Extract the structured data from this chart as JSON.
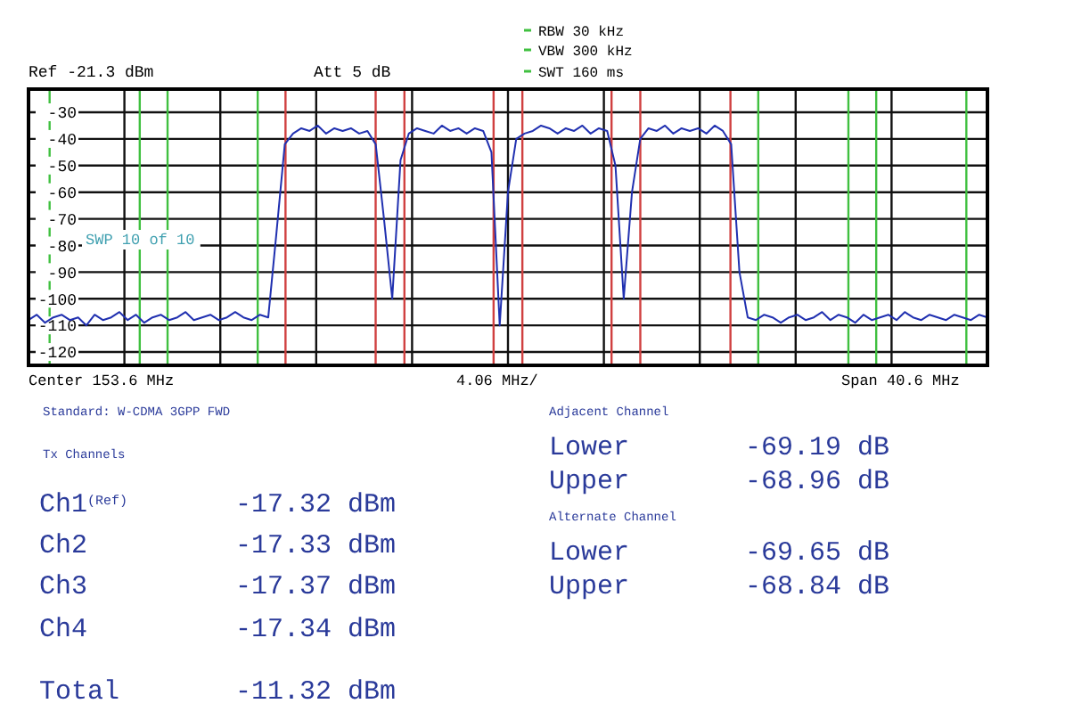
{
  "chart_data": {
    "type": "line",
    "categories": [
      null,
      null,
      null,
      null,
      null,
      null,
      null,
      null,
      null,
      null,
      null,
      null,
      null,
      null,
      null,
      null,
      null,
      null,
      null,
      null,
      null,
      null,
      null,
      null,
      null,
      null,
      null,
      null,
      null,
      null,
      null,
      null,
      null,
      null,
      null,
      null,
      null,
      null,
      null,
      null,
      null,
      null,
      null,
      null,
      null,
      null,
      null,
      null,
      null,
      null,
      null,
      null,
      null,
      null,
      null,
      null,
      null,
      null,
      null,
      null,
      null,
      null,
      null,
      null,
      null,
      null,
      null,
      null,
      null,
      null,
      null,
      null,
      null,
      null,
      null,
      null,
      null,
      null,
      null,
      null,
      null,
      null,
      null,
      null,
      null,
      null,
      null,
      null,
      null,
      null,
      null,
      null,
      null,
      null,
      null,
      null,
      null,
      null,
      null,
      null,
      null,
      null,
      null,
      null,
      null,
      null,
      null,
      null,
      null,
      null,
      null,
      null,
      null,
      null,
      null,
      null,
      null
    ],
    "ylim": [
      -125,
      -21.3
    ],
    "yticks": [
      {
        "value": -30,
        "label": "-30"
      },
      {
        "value": -40,
        "label": "-40"
      },
      {
        "value": -50,
        "label": "-50"
      },
      {
        "value": -60,
        "label": "-60"
      },
      {
        "value": -70,
        "label": "-70"
      },
      {
        "value": -80,
        "label": "-80"
      },
      {
        "value": -90,
        "label": "-90"
      },
      {
        "value": -100,
        "label": "-100"
      },
      {
        "value": -110,
        "label": "-110"
      },
      {
        "value": -120,
        "label": "-120"
      }
    ],
    "tick_labels": "y",
    "grid": true,
    "marker": "none",
    "line_style": "solid",
    "series": [
      {
        "color": "#2030b0",
        "values": [
          -108,
          -106,
          -109,
          -107,
          -106,
          -108,
          -107,
          -110,
          -106,
          -108,
          -107,
          -105,
          -108,
          -106,
          -109,
          -107,
          -106,
          -108,
          -107,
          -105,
          -108,
          -107,
          -106,
          -108,
          -107,
          -105,
          -107,
          -108,
          -106,
          -107,
          -75,
          -42,
          -38,
          -36,
          -37,
          -35,
          -38,
          -36,
          -37,
          -36,
          -38,
          -37,
          -42,
          -70,
          -100,
          -48,
          -38,
          -36,
          -37,
          -38,
          -35,
          -37,
          -36,
          -38,
          -36,
          -37,
          -45,
          -110,
          -60,
          -40,
          -38,
          -37,
          -35,
          -36,
          -38,
          -36,
          -37,
          -35,
          -38,
          -36,
          -37,
          -50,
          -100,
          -60,
          -40,
          -36,
          -37,
          -35,
          -38,
          -36,
          -37,
          -36,
          -38,
          -35,
          -37,
          -42,
          -90,
          -107,
          -108,
          -106,
          -107,
          -109,
          -107,
          -106,
          -108,
          -107,
          -105,
          -108,
          -106,
          -107,
          -109,
          -106,
          -108,
          -107,
          -106,
          -108,
          -105,
          -107,
          -108,
          -106,
          -107,
          -108,
          -106,
          -107,
          -108,
          -106,
          -107
        ]
      }
    ],
    "annotations": [
      "Ref -21.3 dBm",
      "Att 5 dB",
      "RBW 30 kHz",
      "VBW 300 kHz",
      "SWT 160 ms",
      "SWP 10 of 10",
      "Center 153.6 MHz",
      "4.06 MHz/",
      "Span 40.6 MHz",
      "Standard: W-CDMA 3GPP FWD",
      "Tx Channels",
      "Ch1$^{(Ref)}$",
      "-17.32 dBm",
      "Ch2",
      "-17.33 dBm",
      "Ch3",
      "-17.37 dBm",
      "Ch4",
      "-17.34 dBm",
      "Total",
      "-11.32 dBm",
      "Adjacent Channel",
      "Lower",
      "-69.19 dB",
      "Upper",
      "-68.96 dB",
      "Alternate Channel",
      "Lower",
      "-69.65 dB",
      "Upper",
      "-68.84 dB"
    ]
  }
}
